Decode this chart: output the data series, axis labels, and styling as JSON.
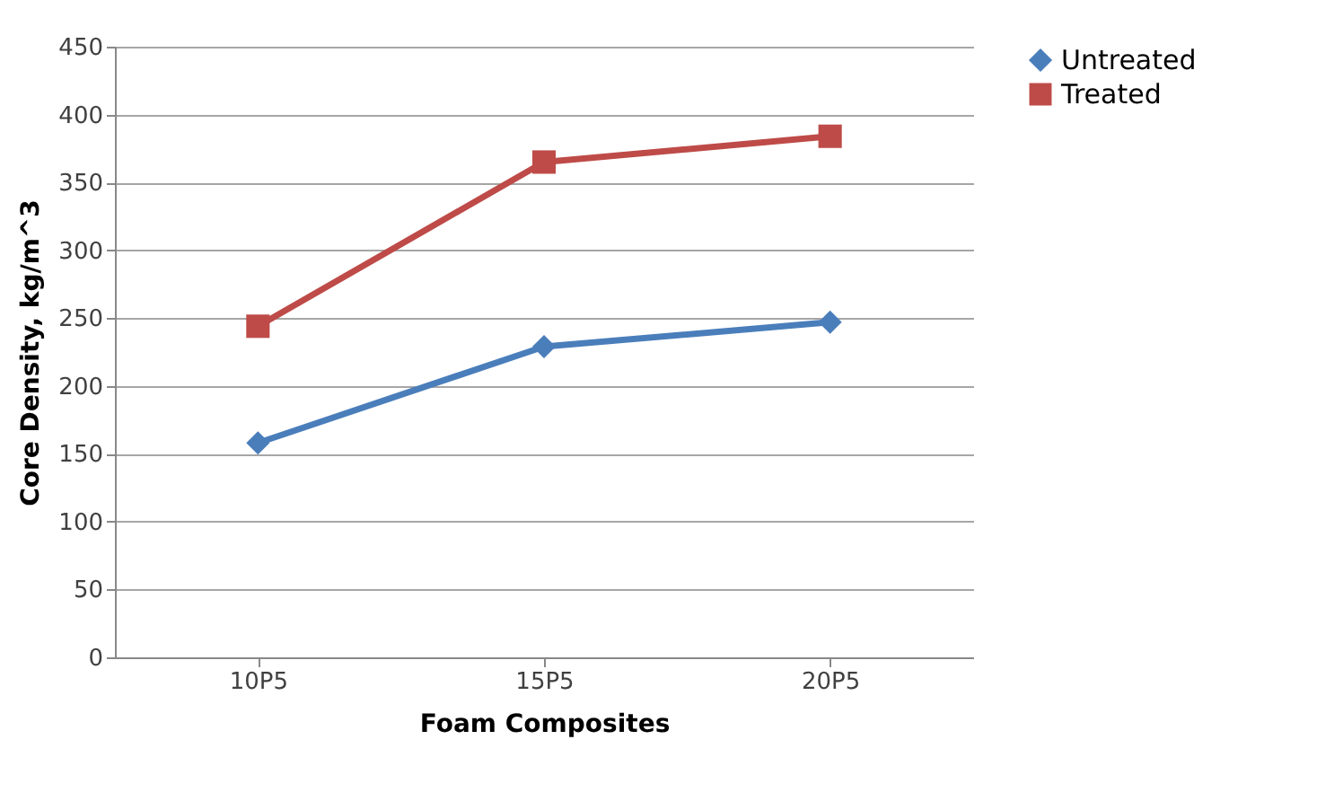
{
  "chart_data": {
    "type": "line",
    "xlabel": "Foam Composites",
    "ylabel": "Core Density, kg/m^3",
    "categories": [
      "10P5",
      "15P5",
      "20P5"
    ],
    "series": [
      {
        "name": "Untreated",
        "color": "#4a7ebb",
        "values": [
          158,
          229,
          247
        ],
        "marker": "diamond"
      },
      {
        "name": "Treated",
        "color": "#be4b48",
        "values": [
          244,
          365,
          384
        ],
        "marker": "square"
      }
    ],
    "ylim": [
      0,
      450
    ],
    "yticks": [
      0,
      50,
      100,
      150,
      200,
      250,
      300,
      350,
      400,
      450
    ],
    "grid": "y",
    "legend": "right"
  }
}
